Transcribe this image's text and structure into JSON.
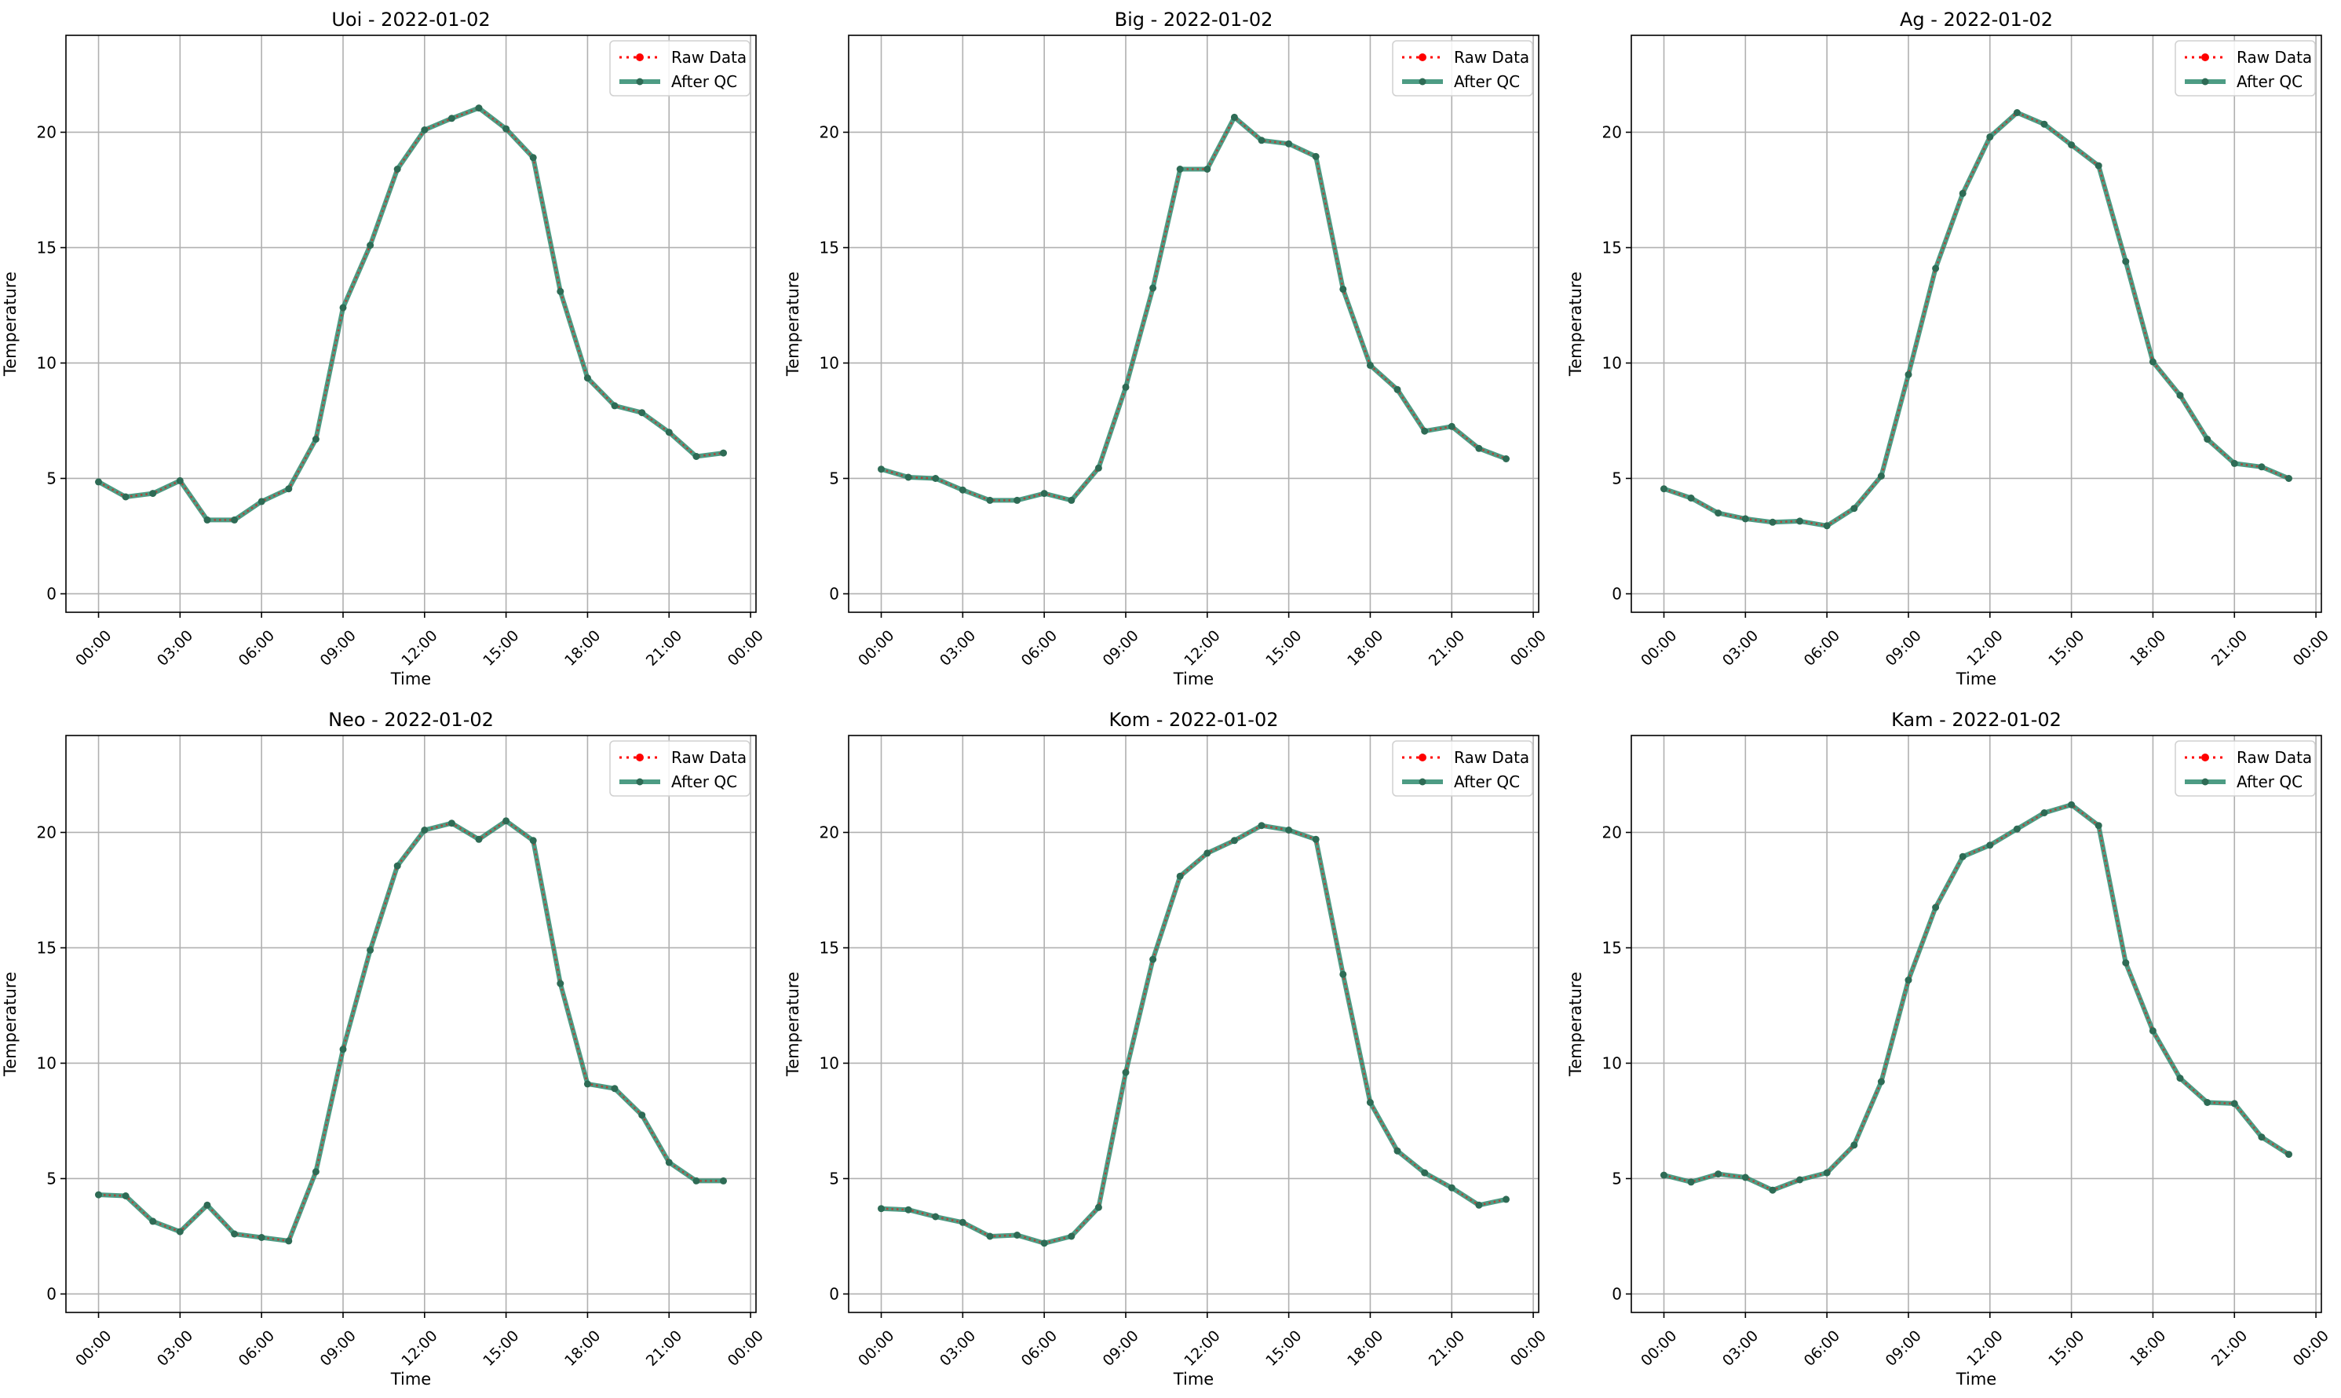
{
  "colors": {
    "raw": "#ff0000",
    "qc": "#2e8b6e",
    "qc_marker": "#2e6b55",
    "grid": "#b0b0b0",
    "axis": "#000000"
  },
  "legend": {
    "raw_label": "Raw Data",
    "qc_label": "After QC"
  },
  "chart_data": [
    {
      "type": "line",
      "title": "Uoi - 2022-01-02",
      "xlabel": "Time",
      "ylabel": "Temperature",
      "x_ticks": [
        "00:00",
        "03:00",
        "06:00",
        "09:00",
        "12:00",
        "15:00",
        "18:00",
        "21:00",
        "00:00"
      ],
      "y_ticks": [
        0,
        5,
        10,
        15,
        20
      ],
      "xlim": [
        -1.2,
        24.2
      ],
      "ylim": [
        -0.8,
        24.2
      ],
      "grid": true,
      "legend_position": "top-right",
      "x": [
        0,
        1,
        2,
        3,
        4,
        5,
        6,
        7,
        8,
        9,
        10,
        11,
        12,
        13,
        14,
        15,
        16,
        17,
        18,
        19,
        20,
        21,
        22,
        23
      ],
      "series": [
        {
          "name": "Raw Data",
          "values": [
            4.85,
            4.2,
            4.35,
            4.9,
            3.2,
            3.2,
            4.0,
            4.55,
            6.7,
            12.4,
            15.1,
            18.4,
            20.1,
            20.6,
            21.05,
            20.15,
            18.9,
            13.1,
            9.35,
            8.15,
            7.85,
            7.0,
            5.95,
            6.1
          ]
        },
        {
          "name": "After QC",
          "values": [
            4.85,
            4.2,
            4.35,
            4.9,
            3.2,
            3.2,
            4.0,
            4.55,
            6.7,
            12.4,
            15.1,
            18.4,
            20.1,
            20.6,
            21.05,
            20.15,
            18.9,
            13.1,
            9.35,
            8.15,
            7.85,
            7.0,
            5.95,
            6.1
          ]
        }
      ]
    },
    {
      "type": "line",
      "title": "Big - 2022-01-02",
      "xlabel": "Time",
      "ylabel": "Temperature",
      "x_ticks": [
        "00:00",
        "03:00",
        "06:00",
        "09:00",
        "12:00",
        "15:00",
        "18:00",
        "21:00",
        "00:00"
      ],
      "y_ticks": [
        0,
        5,
        10,
        15,
        20
      ],
      "xlim": [
        -1.2,
        24.2
      ],
      "ylim": [
        -0.8,
        24.2
      ],
      "grid": true,
      "legend_position": "top-right",
      "x": [
        0,
        1,
        2,
        3,
        4,
        5,
        6,
        7,
        8,
        9,
        10,
        11,
        12,
        13,
        14,
        15,
        16,
        17,
        18,
        19,
        20,
        21,
        22,
        23
      ],
      "series": [
        {
          "name": "Raw Data",
          "values": [
            5.4,
            5.05,
            5.0,
            4.5,
            4.05,
            4.05,
            4.35,
            4.05,
            5.45,
            8.95,
            13.25,
            18.4,
            18.4,
            20.65,
            19.65,
            19.5,
            18.95,
            13.2,
            9.9,
            8.85,
            7.05,
            7.25,
            6.3,
            5.85
          ]
        },
        {
          "name": "After QC",
          "values": [
            5.4,
            5.05,
            5.0,
            4.5,
            4.05,
            4.05,
            4.35,
            4.05,
            5.45,
            8.95,
            13.25,
            18.4,
            18.4,
            20.65,
            19.65,
            19.5,
            18.95,
            13.2,
            9.9,
            8.85,
            7.05,
            7.25,
            6.3,
            5.85
          ]
        }
      ]
    },
    {
      "type": "line",
      "title": "Ag - 2022-01-02",
      "xlabel": "Time",
      "ylabel": "Temperature",
      "x_ticks": [
        "00:00",
        "03:00",
        "06:00",
        "09:00",
        "12:00",
        "15:00",
        "18:00",
        "21:00",
        "00:00"
      ],
      "y_ticks": [
        0,
        5,
        10,
        15,
        20
      ],
      "xlim": [
        -1.2,
        24.2
      ],
      "ylim": [
        -0.8,
        24.2
      ],
      "grid": true,
      "legend_position": "top-right",
      "x": [
        0,
        1,
        2,
        3,
        4,
        5,
        6,
        7,
        8,
        9,
        10,
        11,
        12,
        13,
        14,
        15,
        16,
        17,
        18,
        19,
        20,
        21,
        22,
        23
      ],
      "series": [
        {
          "name": "Raw Data",
          "values": [
            4.55,
            4.15,
            3.5,
            3.25,
            3.1,
            3.15,
            2.95,
            3.7,
            5.1,
            9.5,
            14.1,
            17.35,
            19.8,
            20.85,
            20.35,
            19.45,
            18.55,
            14.4,
            10.05,
            8.6,
            6.7,
            5.65,
            5.5,
            5.0
          ]
        },
        {
          "name": "After QC",
          "values": [
            4.55,
            4.15,
            3.5,
            3.25,
            3.1,
            3.15,
            2.95,
            3.7,
            5.1,
            9.5,
            14.1,
            17.35,
            19.8,
            20.85,
            20.35,
            19.45,
            18.55,
            14.4,
            10.05,
            8.6,
            6.7,
            5.65,
            5.5,
            5.0
          ]
        }
      ]
    },
    {
      "type": "line",
      "title": "Neo - 2022-01-02",
      "xlabel": "Time",
      "ylabel": "Temperature",
      "x_ticks": [
        "00:00",
        "03:00",
        "06:00",
        "09:00",
        "12:00",
        "15:00",
        "18:00",
        "21:00",
        "00:00"
      ],
      "y_ticks": [
        0,
        5,
        10,
        15,
        20
      ],
      "xlim": [
        -1.2,
        24.2
      ],
      "ylim": [
        -0.8,
        24.2
      ],
      "grid": true,
      "legend_position": "top-right",
      "x": [
        0,
        1,
        2,
        3,
        4,
        5,
        6,
        7,
        8,
        9,
        10,
        11,
        12,
        13,
        14,
        15,
        16,
        17,
        18,
        19,
        20,
        21,
        22,
        23
      ],
      "series": [
        {
          "name": "Raw Data",
          "values": [
            4.3,
            4.25,
            3.15,
            2.7,
            3.85,
            2.6,
            2.45,
            2.3,
            5.3,
            10.6,
            14.9,
            18.55,
            20.1,
            20.4,
            19.7,
            20.5,
            19.65,
            13.45,
            9.1,
            8.9,
            7.75,
            5.7,
            4.9,
            4.9
          ]
        },
        {
          "name": "After QC",
          "values": [
            4.3,
            4.25,
            3.15,
            2.7,
            3.85,
            2.6,
            2.45,
            2.3,
            5.3,
            10.6,
            14.9,
            18.55,
            20.1,
            20.4,
            19.7,
            20.5,
            19.65,
            13.45,
            9.1,
            8.9,
            7.75,
            5.7,
            4.9,
            4.9
          ]
        }
      ]
    },
    {
      "type": "line",
      "title": "Kom - 2022-01-02",
      "xlabel": "Time",
      "ylabel": "Temperature",
      "x_ticks": [
        "00:00",
        "03:00",
        "06:00",
        "09:00",
        "12:00",
        "15:00",
        "18:00",
        "21:00",
        "00:00"
      ],
      "y_ticks": [
        0,
        5,
        10,
        15,
        20
      ],
      "xlim": [
        -1.2,
        24.2
      ],
      "ylim": [
        -0.8,
        24.2
      ],
      "grid": true,
      "legend_position": "top-right",
      "x": [
        0,
        1,
        2,
        3,
        4,
        5,
        6,
        7,
        8,
        9,
        10,
        11,
        12,
        13,
        14,
        15,
        16,
        17,
        18,
        19,
        20,
        21,
        22,
        23
      ],
      "series": [
        {
          "name": "Raw Data",
          "values": [
            3.7,
            3.65,
            3.35,
            3.1,
            2.5,
            2.55,
            2.2,
            2.5,
            3.75,
            9.6,
            14.5,
            18.1,
            19.1,
            19.65,
            20.3,
            20.1,
            19.7,
            13.85,
            8.3,
            6.2,
            5.25,
            4.6,
            3.85,
            4.1
          ]
        },
        {
          "name": "After QC",
          "values": [
            3.7,
            3.65,
            3.35,
            3.1,
            2.5,
            2.55,
            2.2,
            2.5,
            3.75,
            9.6,
            14.5,
            18.1,
            19.1,
            19.65,
            20.3,
            20.1,
            19.7,
            13.85,
            8.3,
            6.2,
            5.25,
            4.6,
            3.85,
            4.1
          ]
        }
      ]
    },
    {
      "type": "line",
      "title": "Kam - 2022-01-02",
      "xlabel": "Time",
      "ylabel": "Temperature",
      "x_ticks": [
        "00:00",
        "03:00",
        "06:00",
        "09:00",
        "12:00",
        "15:00",
        "18:00",
        "21:00",
        "00:00"
      ],
      "y_ticks": [
        0,
        5,
        10,
        15,
        20
      ],
      "xlim": [
        -1.2,
        24.2
      ],
      "ylim": [
        -0.8,
        24.2
      ],
      "grid": true,
      "legend_position": "top-right",
      "x": [
        0,
        1,
        2,
        3,
        4,
        5,
        6,
        7,
        8,
        9,
        10,
        11,
        12,
        13,
        14,
        15,
        16,
        17,
        18,
        19,
        20,
        21,
        22,
        23
      ],
      "series": [
        {
          "name": "Raw Data",
          "values": [
            5.15,
            4.85,
            5.2,
            5.05,
            4.5,
            4.95,
            5.25,
            6.45,
            9.2,
            13.6,
            16.75,
            18.95,
            19.45,
            20.15,
            20.85,
            21.2,
            20.3,
            14.35,
            11.4,
            9.35,
            8.3,
            8.25,
            6.8,
            6.05
          ]
        },
        {
          "name": "After QC",
          "values": [
            5.15,
            4.85,
            5.2,
            5.05,
            4.5,
            4.95,
            5.25,
            6.45,
            9.2,
            13.6,
            16.75,
            18.95,
            19.45,
            20.15,
            20.85,
            21.2,
            20.3,
            14.35,
            11.4,
            9.35,
            8.3,
            8.25,
            6.8,
            6.05
          ]
        }
      ]
    }
  ]
}
